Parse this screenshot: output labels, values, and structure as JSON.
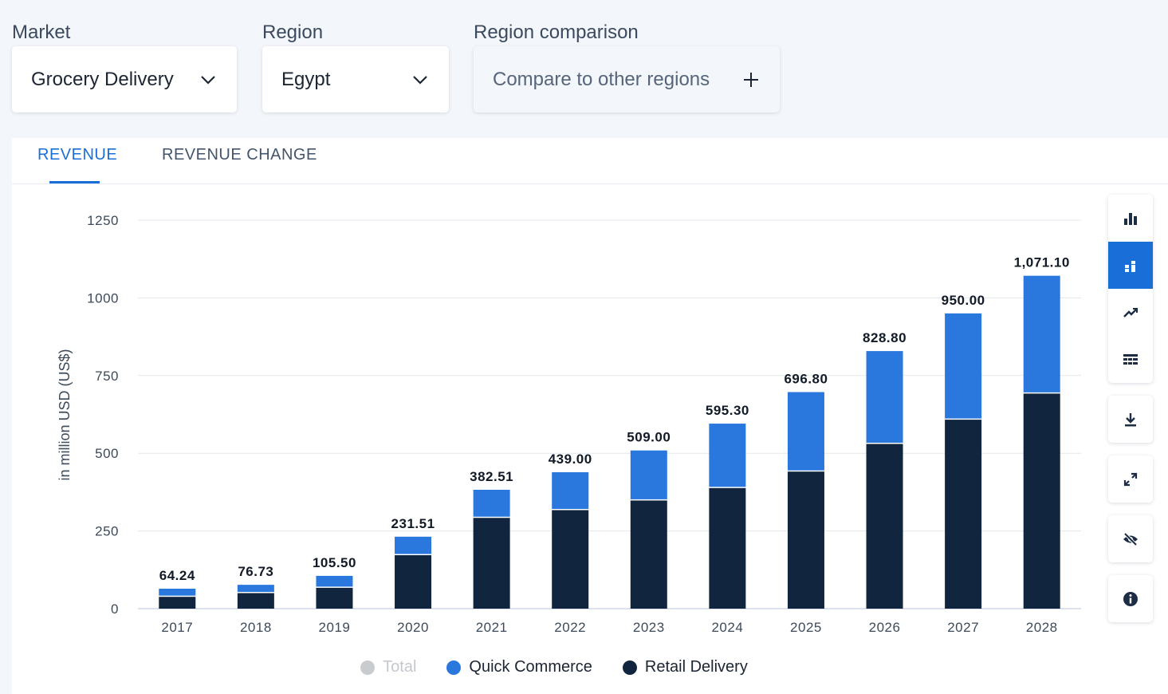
{
  "filters": {
    "market": {
      "label": "Market",
      "value": "Grocery Delivery"
    },
    "region": {
      "label": "Region",
      "value": "Egypt"
    },
    "comparison": {
      "label": "Region comparison",
      "value": "Compare to other regions"
    }
  },
  "tabs": [
    {
      "label": "REVENUE",
      "active": true
    },
    {
      "label": "REVENUE CHANGE",
      "active": false
    }
  ],
  "sidebar_icons": [
    "bar-chart-icon",
    "stacked-bar-icon",
    "trend-line-icon",
    "table-icon",
    "download-icon",
    "fullscreen-icon",
    "hide-icon",
    "info-icon"
  ],
  "colors": {
    "quick_commerce": "#2a78de",
    "retail_delivery": "#11263e",
    "total_hidden": "#c9cccf",
    "accent": "#1a6ed8"
  },
  "chart_data": {
    "type": "bar",
    "stacked": true,
    "ylabel": "in million USD (US$)",
    "xlabel": "",
    "ylim": [
      0,
      1250
    ],
    "yticks": [
      0,
      250,
      500,
      750,
      1000,
      1250
    ],
    "grid": true,
    "legend_position": "bottom",
    "categories": [
      "2017",
      "2018",
      "2019",
      "2020",
      "2021",
      "2022",
      "2023",
      "2024",
      "2025",
      "2026",
      "2027",
      "2028"
    ],
    "series": [
      {
        "name": "Retail Delivery",
        "values": [
          38,
          50,
          67,
          172,
          292,
          317,
          348,
          388,
          441,
          530,
          608,
          692
        ]
      },
      {
        "name": "Quick Commerce",
        "values": [
          26.24,
          26.73,
          38.5,
          59.51,
          90.51,
          122,
          161,
          207.3,
          255.8,
          298.8,
          342,
          379.1
        ]
      }
    ],
    "totals_labels": [
      "64.24",
      "76.73",
      "105.50",
      "231.51",
      "382.51",
      "439.00",
      "509.00",
      "595.30",
      "696.80",
      "828.80",
      "950.00",
      "1,071.10"
    ],
    "legend": [
      {
        "name": "Total",
        "visible": false
      },
      {
        "name": "Quick Commerce",
        "visible": true
      },
      {
        "name": "Retail Delivery",
        "visible": true
      }
    ]
  }
}
